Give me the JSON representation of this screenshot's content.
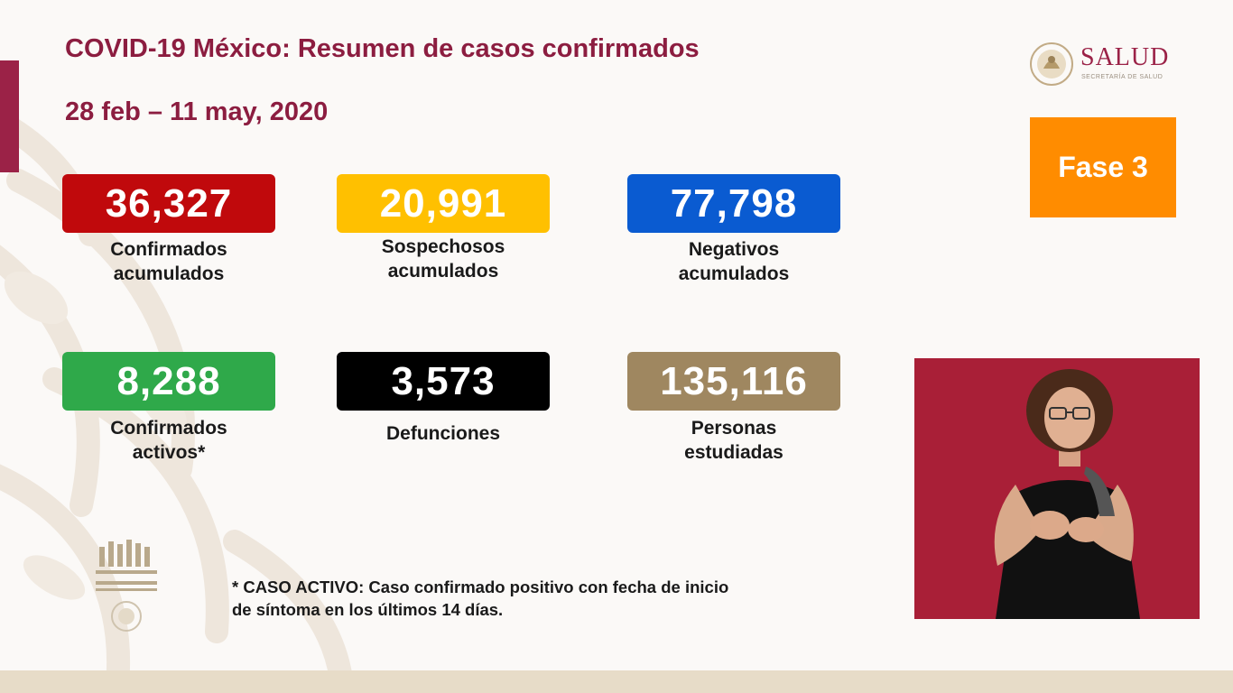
{
  "header": {
    "title": "COVID-19 México: Resumen de casos confirmados",
    "date_range": "28 feb – 11 may, 2020"
  },
  "logo": {
    "brand": "SALUD",
    "subbrand": "SECRETARÍA DE SALUD"
  },
  "phase": {
    "label": "Fase 3",
    "color": "#ff8c00"
  },
  "stats": [
    {
      "value": "36,327",
      "label": "Confirmados\nacumulados",
      "color": "#c0090c"
    },
    {
      "value": "20,991",
      "label": "Sospechosos\nacumulados",
      "color": "#ffc000"
    },
    {
      "value": "77,798",
      "label": "Negativos\nacumulados",
      "color": "#0a5bd1"
    },
    {
      "value": "8,288",
      "label": "Confirmados\nactivos*",
      "color": "#2fa94a"
    },
    {
      "value": "3,573",
      "label": "Defunciones",
      "color": "#000000"
    },
    {
      "value": "135,116",
      "label": "Personas\nestudiadas",
      "color": "#9f8760"
    }
  ],
  "footnote": "* CASO ACTIVO: Caso confirmado positivo con fecha de inicio\nde síntoma en los últimos 14 días.",
  "colors": {
    "accent": "#8c1d40",
    "interpreter_bg": "#a91f37"
  }
}
